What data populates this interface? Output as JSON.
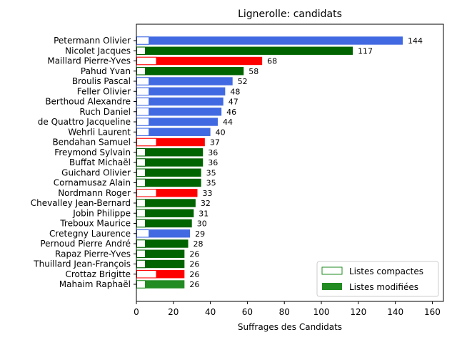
{
  "chart_data": {
    "type": "bar",
    "orientation": "horizontal",
    "title": "Lignerolle: candidats",
    "xlabel": "Suffrages des Candidats",
    "ylabel": "",
    "xlim": [
      0,
      166
    ],
    "xticks": [
      0,
      20,
      40,
      60,
      80,
      100,
      120,
      140,
      160
    ],
    "grid": false,
    "legend_position": "lower-right",
    "legend": [
      {
        "label": "Listes compactes",
        "style": "outline",
        "color": "#228b22"
      },
      {
        "label": "Listes modifiées",
        "style": "filled",
        "color": "#228b22"
      }
    ],
    "party_colors": {
      "blue": "#4169e1",
      "green": "#006400",
      "red": "#ff0000",
      "lightgreen": "#228b22"
    },
    "candidates": [
      {
        "name": "Petermann Olivier",
        "total": 144,
        "compact": 7,
        "party": "blue"
      },
      {
        "name": "Nicolet Jacques",
        "total": 117,
        "compact": 5,
        "party": "green"
      },
      {
        "name": "Maillard Pierre-Yves",
        "total": 68,
        "compact": 11,
        "party": "red"
      },
      {
        "name": "Pahud Yvan",
        "total": 58,
        "compact": 5,
        "party": "green"
      },
      {
        "name": "Broulis Pascal",
        "total": 52,
        "compact": 7,
        "party": "blue"
      },
      {
        "name": "Feller Olivier",
        "total": 48,
        "compact": 7,
        "party": "blue"
      },
      {
        "name": "Berthoud Alexandre",
        "total": 47,
        "compact": 7,
        "party": "blue"
      },
      {
        "name": "Ruch Daniel",
        "total": 46,
        "compact": 7,
        "party": "blue"
      },
      {
        "name": "de Quattro Jacqueline",
        "total": 44,
        "compact": 7,
        "party": "blue"
      },
      {
        "name": "Wehrli Laurent",
        "total": 40,
        "compact": 7,
        "party": "blue"
      },
      {
        "name": "Bendahan Samuel",
        "total": 37,
        "compact": 11,
        "party": "red"
      },
      {
        "name": "Freymond Sylvain",
        "total": 36,
        "compact": 5,
        "party": "green"
      },
      {
        "name": "Buffat Michaël",
        "total": 36,
        "compact": 5,
        "party": "green"
      },
      {
        "name": "Guichard Olivier",
        "total": 35,
        "compact": 5,
        "party": "green"
      },
      {
        "name": "Cornamusaz Alain",
        "total": 35,
        "compact": 5,
        "party": "green"
      },
      {
        "name": "Nordmann Roger",
        "total": 33,
        "compact": 11,
        "party": "red"
      },
      {
        "name": "Chevalley Jean-Bernard",
        "total": 32,
        "compact": 5,
        "party": "green"
      },
      {
        "name": "Jobin Philippe",
        "total": 31,
        "compact": 5,
        "party": "green"
      },
      {
        "name": "Treboux Maurice",
        "total": 30,
        "compact": 5,
        "party": "green"
      },
      {
        "name": "Cretegny Laurence",
        "total": 29,
        "compact": 7,
        "party": "blue"
      },
      {
        "name": "Pernoud Pierre André",
        "total": 28,
        "compact": 5,
        "party": "green"
      },
      {
        "name": "Rapaz Pierre-Yves",
        "total": 26,
        "compact": 5,
        "party": "green"
      },
      {
        "name": "Thuillard Jean-François",
        "total": 26,
        "compact": 5,
        "party": "green"
      },
      {
        "name": "Crottaz Brigitte",
        "total": 26,
        "compact": 11,
        "party": "red"
      },
      {
        "name": "Mahaim Raphaël",
        "total": 26,
        "compact": 5,
        "party": "lightgreen"
      }
    ]
  }
}
